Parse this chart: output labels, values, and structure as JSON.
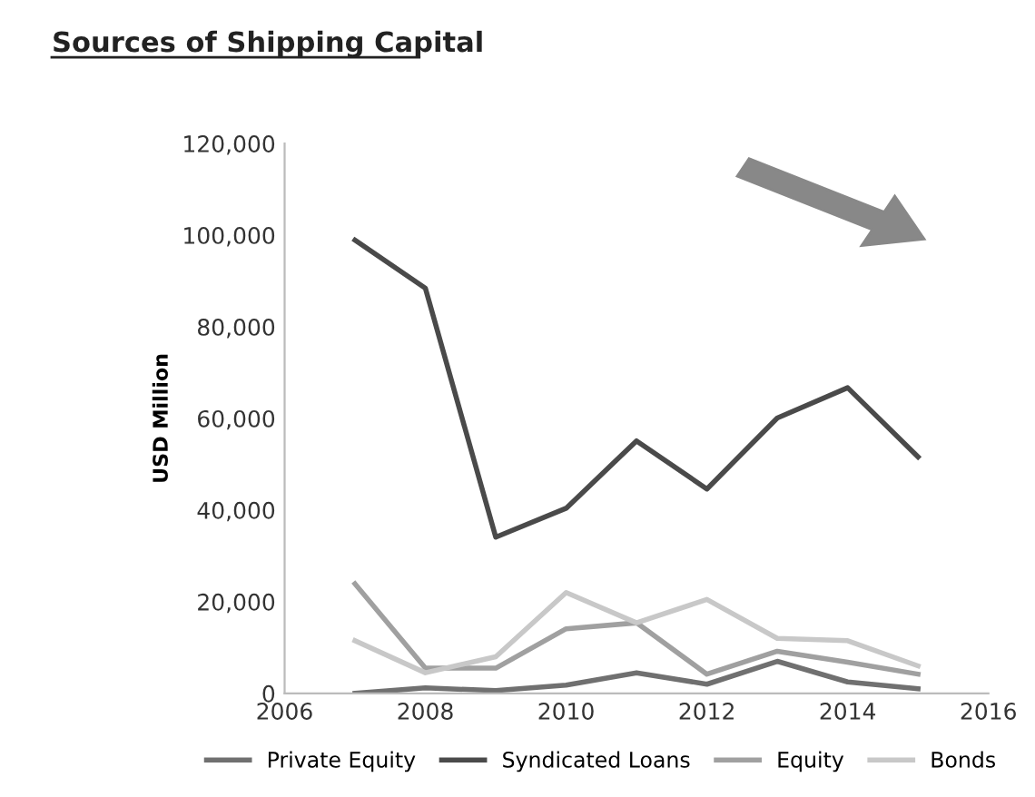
{
  "chart_data": {
    "type": "line",
    "title": "Sources of Shipping Capital",
    "ylabel": "USD Million",
    "x": [
      2007,
      2008,
      2009,
      2010,
      2011,
      2012,
      2013,
      2014,
      2015
    ],
    "series": [
      {
        "name": "Private Equity",
        "color": "#707070",
        "values": [
          0,
          1200,
          600,
          1800,
          4500,
          2000,
          7000,
          2500,
          1000
        ]
      },
      {
        "name": "Syndicated Loans",
        "color": "#4a4a4a",
        "values": [
          98900,
          88400,
          34100,
          40400,
          55100,
          44600,
          60100,
          66700,
          51600
        ]
      },
      {
        "name": "Equity",
        "color": "#a0a0a0",
        "values": [
          23900,
          5500,
          5500,
          14100,
          15400,
          4200,
          9200,
          6800,
          4200
        ]
      },
      {
        "name": "Bonds",
        "color": "#c8c8c8",
        "values": [
          11500,
          4500,
          8000,
          22000,
          15400,
          20500,
          12000,
          11500,
          6000
        ]
      }
    ],
    "xlim": [
      2006,
      2016
    ],
    "xticks": [
      2006,
      2008,
      2010,
      2012,
      2014,
      2016
    ],
    "ylim": [
      0,
      120000
    ],
    "yticks": [
      {
        "value": 0,
        "label": "0"
      },
      {
        "value": 20000,
        "label": "20,000"
      },
      {
        "value": 40000,
        "label": "40,000"
      },
      {
        "value": 60000,
        "label": "60,000"
      },
      {
        "value": 80000,
        "label": "80,000"
      },
      {
        "value": 100000,
        "label": "100,000"
      },
      {
        "value": 120000,
        "label": "120,000"
      }
    ],
    "grid": false,
    "legend": "bottom",
    "marker": "none",
    "line_style": "solid"
  }
}
